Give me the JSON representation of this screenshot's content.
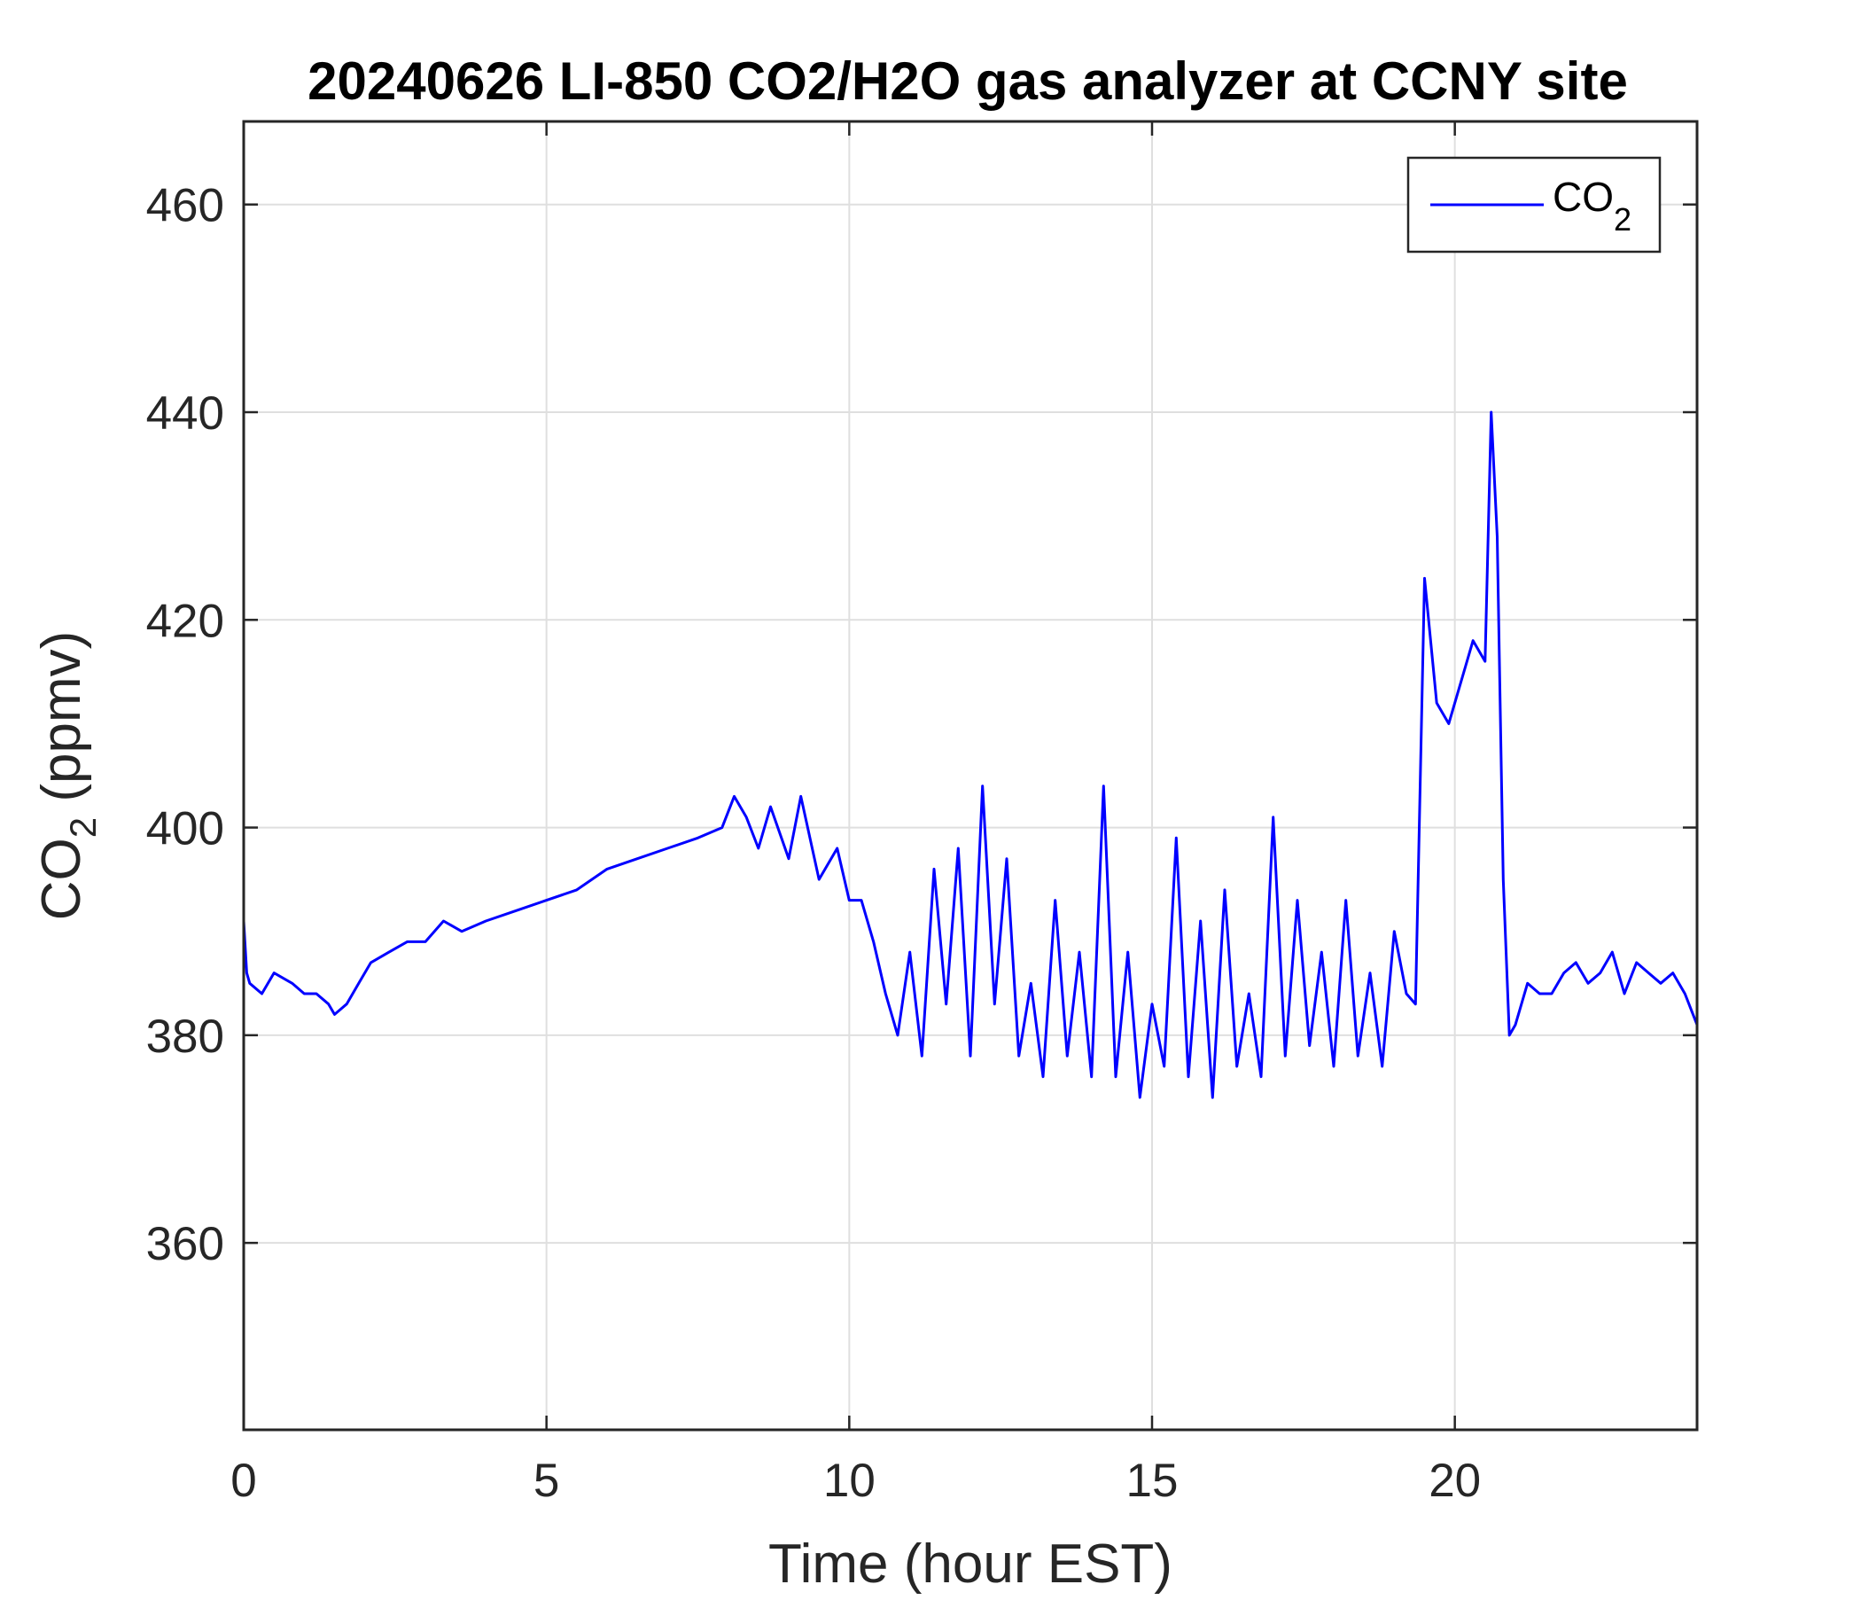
{
  "chart_data": {
    "type": "line",
    "title": "20240626 LI-850 CO2/H2O gas analyzer at CCNY site",
    "xlabel": "Time (hour EST)",
    "ylabel_main": "CO",
    "ylabel_subscript": "2",
    "ylabel_unit": " (ppmv)",
    "xlim": [
      0,
      24
    ],
    "ylim": [
      342,
      468
    ],
    "xticks": [
      0,
      5,
      10,
      15,
      20
    ],
    "xtick_labels": [
      "0",
      "5",
      "10",
      "15",
      "20"
    ],
    "yticks": [
      360,
      380,
      400,
      420,
      440,
      460
    ],
    "ytick_labels": [
      "360",
      "380",
      "400",
      "420",
      "440",
      "460"
    ],
    "grid": true,
    "legend": {
      "position": "top-right",
      "entry_main": "CO",
      "entry_subscript": "2"
    },
    "colors": {
      "series": "#0000ff",
      "axes": "#262626",
      "grid": "#dfdfdf"
    },
    "series": [
      {
        "name": "CO2",
        "x": [
          0,
          0.05,
          0.1,
          0.3,
          0.5,
          0.8,
          1.0,
          1.2,
          1.4,
          1.5,
          1.7,
          1.9,
          2.1,
          2.4,
          2.7,
          3.0,
          3.3,
          3.6,
          4.0,
          4.5,
          5.0,
          5.5,
          6.0,
          6.5,
          7.0,
          7.5,
          7.9,
          8.1,
          8.3,
          8.5,
          8.7,
          9.0,
          9.2,
          9.5,
          9.8,
          10.0,
          10.2,
          10.4,
          10.6,
          10.8,
          11.0,
          11.2,
          11.4,
          11.6,
          11.8,
          12.0,
          12.2,
          12.4,
          12.6,
          12.8,
          13.0,
          13.2,
          13.4,
          13.6,
          13.8,
          14.0,
          14.2,
          14.4,
          14.6,
          14.8,
          15.0,
          15.2,
          15.4,
          15.6,
          15.8,
          16.0,
          16.2,
          16.4,
          16.6,
          16.8,
          17.0,
          17.2,
          17.4,
          17.6,
          17.8,
          18.0,
          18.2,
          18.4,
          18.6,
          18.8,
          19.0,
          19.2,
          19.35,
          19.5,
          19.7,
          19.9,
          20.1,
          20.3,
          20.5,
          20.6,
          20.7,
          20.8,
          20.9,
          21.0,
          21.2,
          21.4,
          21.6,
          21.8,
          22.0,
          22.2,
          22.4,
          22.6,
          22.8,
          23.0,
          23.2,
          23.4,
          23.6,
          23.8,
          24.0
        ],
        "y": [
          391,
          386,
          385,
          384,
          386,
          385,
          384,
          384,
          383,
          382,
          383,
          385,
          387,
          388,
          389,
          389,
          391,
          390,
          391,
          392,
          393,
          394,
          396,
          397,
          398,
          399,
          400,
          403,
          401,
          398,
          402,
          397,
          403,
          395,
          398,
          393,
          393,
          389,
          384,
          380,
          388,
          378,
          396,
          383,
          398,
          378,
          404,
          383,
          397,
          378,
          385,
          376,
          393,
          378,
          388,
          376,
          404,
          376,
          388,
          374,
          383,
          377,
          399,
          376,
          391,
          374,
          394,
          377,
          384,
          376,
          401,
          378,
          393,
          379,
          388,
          377,
          393,
          378,
          386,
          377,
          390,
          384,
          383,
          424,
          412,
          410,
          414,
          418,
          416,
          440,
          428,
          395,
          380,
          381,
          385,
          384,
          384,
          386,
          387,
          385,
          386,
          388,
          384,
          387,
          386,
          385,
          386,
          384,
          381
        ]
      }
    ]
  }
}
